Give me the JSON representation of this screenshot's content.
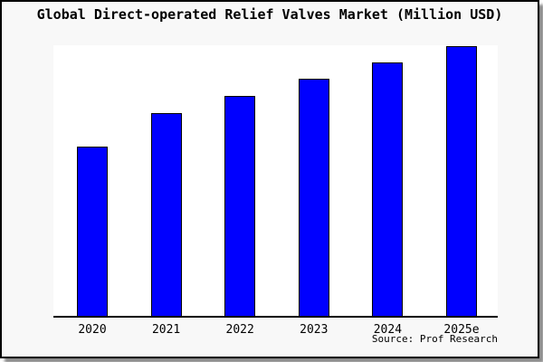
{
  "window": {
    "background_color": "#f8f8f8",
    "plot_background_color": "#ffffff",
    "border_color": "#000000"
  },
  "header": {
    "title": "Global Direct-operated Relief Valves Market (Million USD)"
  },
  "footer": {
    "source": "Source: Prof Research"
  },
  "chart_data": {
    "type": "bar",
    "title": "Global Direct-operated Relief Valves Market (Million USD)",
    "categories": [
      "2020",
      "2021",
      "2022",
      "2023",
      "2024",
      "2025e"
    ],
    "values": [
      63,
      75.3,
      81.7,
      88,
      94,
      100
    ],
    "value_scale_note": "No y-axis, ticks or gridlines are shown; values are relative bar heights normalized so 2025e = 100",
    "xlabel": "",
    "ylabel": "",
    "ylim": [
      0,
      100
    ],
    "grid": false,
    "legend": false,
    "bar_color": "#0000ff",
    "bar_edge_color": "#000000"
  }
}
